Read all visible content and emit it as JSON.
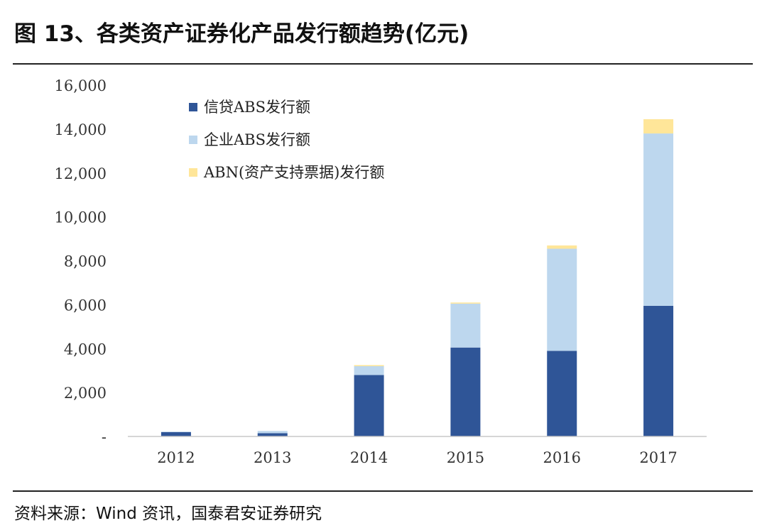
{
  "title": "图 13、各类资产证券化产品发行额趋势(亿元)",
  "source": "资料来源：Wind 资讯，国泰君安证券研究",
  "chart_data": {
    "type": "bar",
    "stacked": true,
    "categories": [
      "2012",
      "2013",
      "2014",
      "2015",
      "2016",
      "2017"
    ],
    "series": [
      {
        "name": "信贷ABS发行额",
        "color": "#2f5597",
        "values": [
          200,
          150,
          2800,
          4050,
          3900,
          5950
        ]
      },
      {
        "name": "企业ABS发行额",
        "color": "#bdd7ee",
        "values": [
          20,
          100,
          400,
          2000,
          4650,
          7850
        ]
      },
      {
        "name": "ABN(资产支持票据)发行额",
        "color": "#ffe699",
        "values": [
          0,
          0,
          50,
          50,
          150,
          650
        ]
      }
    ],
    "ylim": [
      0,
      16000
    ],
    "yticks": [
      0,
      2000,
      4000,
      6000,
      8000,
      10000,
      12000,
      14000,
      16000
    ],
    "ytick_labels": [
      "-",
      "2,000",
      "4,000",
      "6,000",
      "8,000",
      "10,000",
      "12,000",
      "14,000",
      "16,000"
    ],
    "legend_position": "top-left",
    "grid": false
  }
}
